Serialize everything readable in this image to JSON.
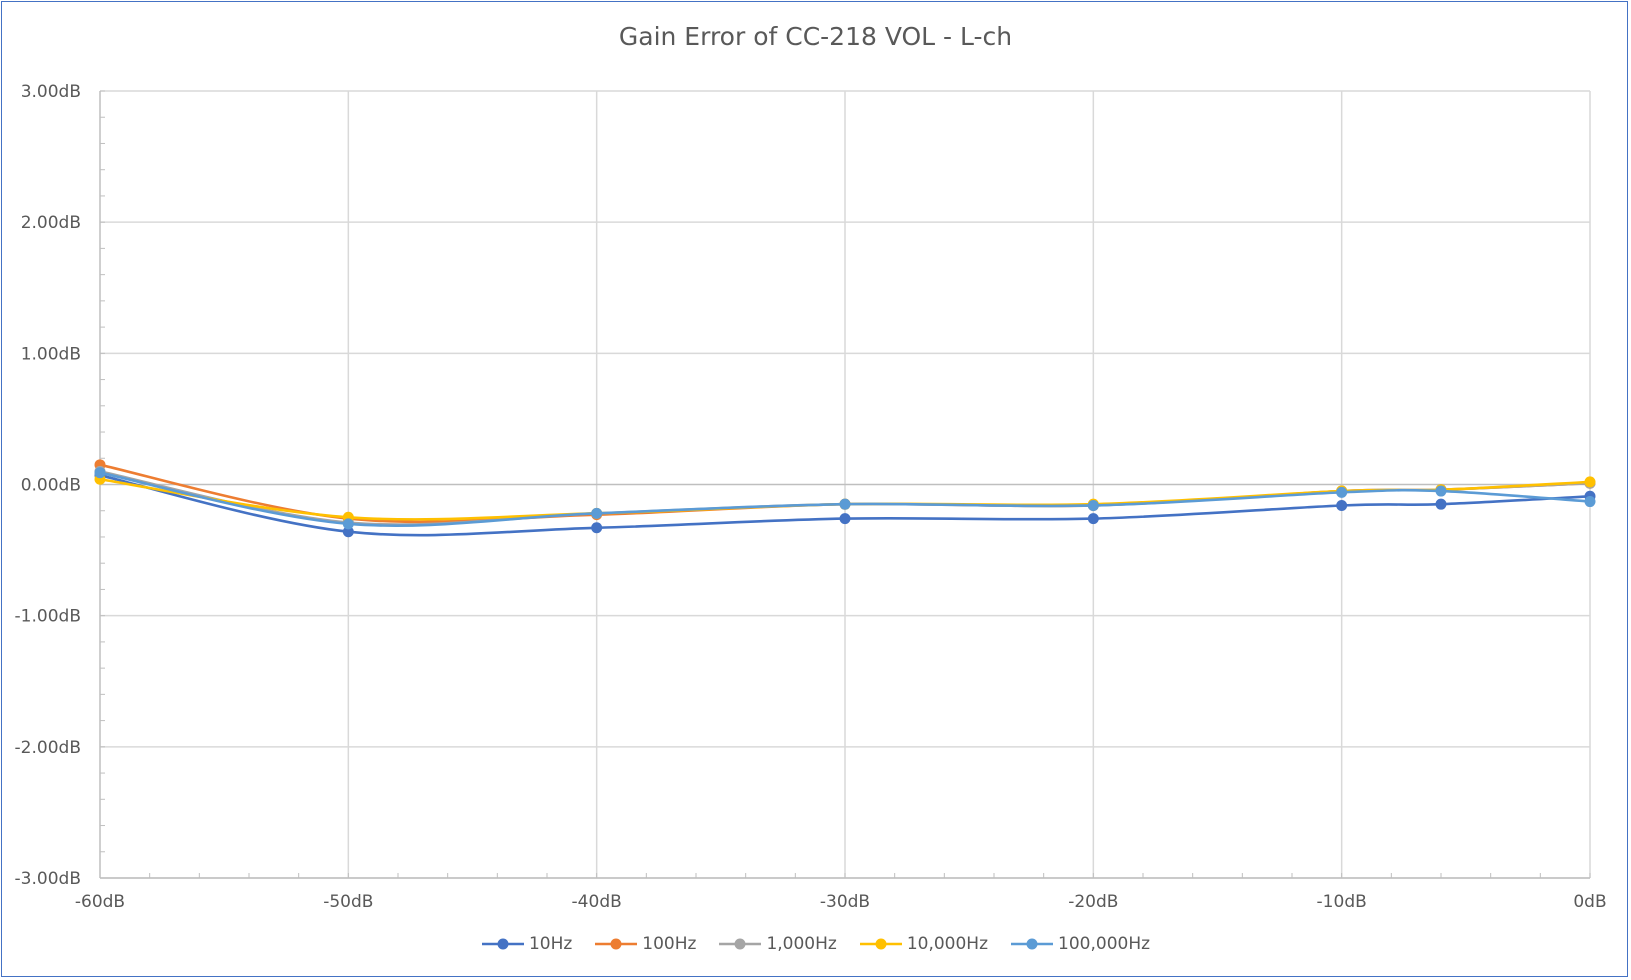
{
  "chart_data": {
    "type": "line",
    "title": "Gain Error of CC-218 VOL - L-ch",
    "xlabel": "",
    "ylabel": "",
    "x": [
      -60,
      -50,
      -40,
      -30,
      -20,
      -10,
      -6,
      0
    ],
    "xlim": [
      -60,
      0
    ],
    "ylim": [
      -3,
      3
    ],
    "x_ticks": [
      {
        "v": -60,
        "label": "-60dB"
      },
      {
        "v": -50,
        "label": "-50dB"
      },
      {
        "v": -40,
        "label": "-40dB"
      },
      {
        "v": -30,
        "label": "-30dB"
      },
      {
        "v": -20,
        "label": "-20dB"
      },
      {
        "v": -10,
        "label": "-10dB"
      },
      {
        "v": 0,
        "label": "0dB"
      }
    ],
    "y_ticks": [
      {
        "v": 3,
        "label": "3.00dB"
      },
      {
        "v": 2,
        "label": "2.00dB"
      },
      {
        "v": 1,
        "label": "1.00dB"
      },
      {
        "v": 0,
        "label": "0.00dB"
      },
      {
        "v": -1,
        "label": "-1.00dB"
      },
      {
        "v": -2,
        "label": "-2.00dB"
      },
      {
        "v": -3,
        "label": "-3.00dB"
      }
    ],
    "grid": true,
    "legend_position": "bottom",
    "smooth": true,
    "series": [
      {
        "name": "10Hz",
        "color": "#4472c4",
        "values": [
          0.07,
          -0.36,
          -0.33,
          -0.26,
          -0.26,
          -0.16,
          -0.15,
          -0.09
        ]
      },
      {
        "name": "100Hz",
        "color": "#ed7d31",
        "values": [
          0.15,
          -0.26,
          -0.23,
          -0.15,
          -0.16,
          -0.05,
          -0.04,
          0.01
        ]
      },
      {
        "name": "1,000Hz",
        "color": "#a5a5a5",
        "values": [
          0.1,
          -0.29,
          -0.22,
          -0.15,
          -0.16,
          -0.05,
          -0.04,
          0.01
        ]
      },
      {
        "name": "10,000Hz",
        "color": "#ffc000",
        "values": [
          0.04,
          -0.25,
          -0.22,
          -0.15,
          -0.15,
          -0.05,
          -0.04,
          0.02
        ]
      },
      {
        "name": "100,000Hz",
        "color": "#5b9bd5",
        "values": [
          0.09,
          -0.3,
          -0.22,
          -0.15,
          -0.16,
          -0.06,
          -0.05,
          -0.13
        ]
      }
    ]
  }
}
